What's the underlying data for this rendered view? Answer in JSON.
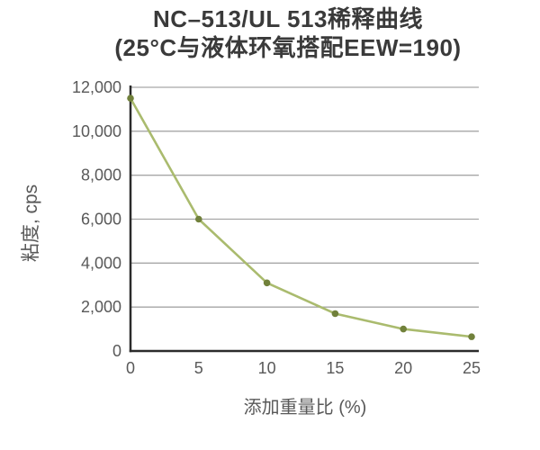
{
  "page": {
    "background": "#ffffff"
  },
  "chart_data": {
    "type": "line",
    "title": "NC–513/UL 513稀释曲线",
    "subtitle": "(25°C与液体环氧搭配EEW=190)",
    "xlabel": "添加重量比 (%)",
    "ylabel": "粘度, cps",
    "x": [
      0,
      5,
      10,
      15,
      20,
      25
    ],
    "values": [
      11500,
      6000,
      3100,
      1700,
      1000,
      650
    ],
    "xlim": [
      0,
      25
    ],
    "ylim": [
      0,
      12000
    ],
    "xtick_values": [
      0,
      5,
      10,
      15,
      20,
      25
    ],
    "xtick_labels": [
      "0",
      "5",
      "10",
      "15",
      "20",
      "25"
    ],
    "ytick_values": [
      0,
      2000,
      4000,
      6000,
      8000,
      10000,
      12000
    ],
    "ytick_labels": [
      "0",
      "2,000",
      "4,000",
      "6,000",
      "8,000",
      "10,000",
      "12,000"
    ],
    "grid": "horizontal",
    "legend": "none",
    "markers": true,
    "colors": {
      "line": "#aabb6e",
      "marker": "#71813b",
      "grid": "#a6a6a6",
      "axis": "#2b2b2b",
      "tick_text": "#595959",
      "title_text": "#3a3a3a"
    }
  }
}
